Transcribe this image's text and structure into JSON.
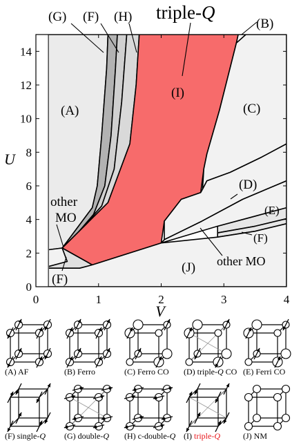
{
  "chart_data": {
    "type": "area",
    "title": "",
    "xlabel": "V",
    "ylabel": "U",
    "xlim": [
      0,
      4
    ],
    "ylim": [
      0,
      15
    ],
    "x_ticks": [
      "0",
      "1",
      "2",
      "3",
      "4"
    ],
    "y_ticks": [
      "0",
      "2",
      "4",
      "6",
      "8",
      "10",
      "12",
      "14"
    ],
    "grid": false,
    "regions": [
      {
        "label": "(A)",
        "color": "#ebebeb",
        "boundary": [
          [
            0.2,
            2.2
          ],
          [
            0.42,
            2.3
          ],
          [
            0.5,
            2.7
          ],
          [
            0.9,
            4.7
          ],
          [
            0.98,
            6
          ],
          [
            1.05,
            9
          ],
          [
            1.13,
            13
          ],
          [
            1.15,
            15
          ],
          [
            0.2,
            15
          ]
        ]
      },
      {
        "label": "(G)",
        "color": "#b2b2b2",
        "boundary": [
          [
            0.42,
            2.3
          ],
          [
            0.6,
            2.9
          ],
          [
            0.92,
            4.3
          ],
          [
            1.1,
            6
          ],
          [
            1.2,
            9
          ],
          [
            1.27,
            13
          ],
          [
            1.3,
            15
          ],
          [
            1.15,
            15
          ],
          [
            1.13,
            13
          ],
          [
            1.05,
            9
          ],
          [
            0.98,
            6
          ],
          [
            0.9,
            4.7
          ],
          [
            0.5,
            2.7
          ]
        ]
      },
      {
        "label": "(F)",
        "color": "#d0d0d0",
        "boundary": [
          [
            0.6,
            2.9
          ],
          [
            1.05,
            4.8
          ],
          [
            1.25,
            7
          ],
          [
            1.37,
            11
          ],
          [
            1.45,
            15
          ],
          [
            1.3,
            15
          ],
          [
            1.27,
            13
          ],
          [
            1.2,
            9
          ],
          [
            1.1,
            6
          ],
          [
            0.92,
            4.3
          ]
        ]
      },
      {
        "label": "(H)",
        "color": "#d9d9d9",
        "boundary": [
          [
            0.42,
            2.3
          ],
          [
            1.15,
            5
          ],
          [
            1.5,
            8.5
          ],
          [
            1.6,
            12
          ],
          [
            1.65,
            15
          ],
          [
            1.45,
            15
          ],
          [
            1.37,
            11
          ],
          [
            1.25,
            7
          ],
          [
            1.05,
            4.8
          ],
          [
            0.6,
            2.9
          ]
        ]
      },
      {
        "label": "(I)",
        "color": "#f76b6b",
        "boundary": [
          [
            0.42,
            2.3
          ],
          [
            0.9,
            1.3
          ],
          [
            2,
            2.6
          ],
          [
            2.05,
            3.9
          ],
          [
            2.32,
            5.2
          ],
          [
            2.63,
            5.6
          ],
          [
            2.68,
            7
          ],
          [
            2.73,
            7.9
          ],
          [
            2.93,
            10.5
          ],
          [
            3.2,
            14.5
          ],
          [
            3.23,
            15
          ],
          [
            1.65,
            15
          ],
          [
            1.6,
            12
          ],
          [
            1.5,
            8.5
          ],
          [
            1.15,
            5
          ]
        ]
      },
      {
        "label": "(C)",
        "color": "#f2f2f2",
        "boundary": [
          [
            2.66,
            5.8
          ],
          [
            2.73,
            6.3
          ],
          [
            3.1,
            6.8
          ],
          [
            3.6,
            7.7
          ],
          [
            4,
            8.5
          ],
          [
            4,
            15
          ],
          [
            3.35,
            15
          ],
          [
            3.2,
            14.5
          ],
          [
            2.93,
            10.5
          ],
          [
            2.73,
            7.9
          ],
          [
            2.68,
            7
          ]
        ]
      },
      {
        "label": "(D)",
        "color": "#f2f2f2",
        "boundary": [
          [
            2.05,
            2.8
          ],
          [
            2.65,
            3.9
          ],
          [
            3.3,
            5.2
          ],
          [
            4,
            6.3
          ],
          [
            4,
            8.5
          ],
          [
            3.6,
            7.7
          ],
          [
            3.1,
            6.8
          ],
          [
            2.73,
            6.3
          ],
          [
            2.66,
            5.8
          ],
          [
            2.63,
            5.6
          ],
          [
            2.32,
            5.2
          ],
          [
            2.05,
            3.9
          ]
        ]
      },
      {
        "label": "(E)",
        "color": "#e6e6e6",
        "boundary": [
          [
            2.9,
            3.6
          ],
          [
            3.5,
            4.2
          ],
          [
            4,
            4.7
          ],
          [
            4,
            4.05
          ],
          [
            3.5,
            3.6
          ],
          [
            2.9,
            3.2
          ]
        ]
      },
      {
        "label": "(F)",
        "color": "#e6e6e6",
        "boundary": [
          [
            2.9,
            3.2
          ],
          [
            3.5,
            3.6
          ],
          [
            4,
            4.05
          ],
          [
            4,
            3.75
          ],
          [
            3.5,
            3.3
          ],
          [
            2.9,
            2.95
          ]
        ]
      },
      {
        "label": "other MO",
        "color": "#f2f2f2",
        "boundary": [
          [
            2,
            2.6
          ],
          [
            2.9,
            3.6
          ],
          [
            3.5,
            4.2
          ],
          [
            4,
            4.7
          ],
          [
            4,
            6.3
          ],
          [
            3.3,
            5.2
          ],
          [
            2.65,
            3.9
          ],
          [
            2.05,
            2.8
          ]
        ]
      },
      {
        "label": "other MO",
        "color": "#f2f2f2",
        "boundary": [
          [
            0.2,
            1.2
          ],
          [
            0.3,
            1.3
          ],
          [
            0.5,
            1.5
          ],
          [
            0.42,
            2.3
          ],
          [
            0.2,
            2.2
          ]
        ]
      },
      {
        "label": "(F)",
        "color": "#e0e0e0",
        "boundary": [
          [
            0.2,
            1.1
          ],
          [
            0.7,
            1.1
          ],
          [
            0.9,
            1.3
          ],
          [
            0.42,
            2.3
          ],
          [
            0.5,
            1.5
          ],
          [
            0.3,
            1.3
          ],
          [
            0.2,
            1.2
          ]
        ]
      },
      {
        "label": "(B)",
        "color": "#ffffff",
        "boundary": [
          [
            3.23,
            15
          ],
          [
            3.2,
            14.5
          ],
          [
            3.35,
            15
          ]
        ]
      },
      {
        "label": "(J)",
        "color": "#f2f2f2",
        "boundary": [
          [
            0.2,
            0
          ],
          [
            4,
            0
          ],
          [
            4,
            3.75
          ],
          [
            3.5,
            3.3
          ],
          [
            2.9,
            2.95
          ],
          [
            2,
            2.6
          ],
          [
            0.9,
            1.3
          ],
          [
            0.7,
            1.1
          ],
          [
            0.2,
            1.1
          ]
        ]
      }
    ]
  },
  "figure": {
    "region_labels": {
      "A": "(A)",
      "B": "(B)",
      "C": "(C)",
      "D": "(D)",
      "E": "(E)",
      "F_top": "(F)",
      "F_right": "(F)",
      "F_bottom": "(F)",
      "G": "(G)",
      "H": "(H)",
      "I": "(I)",
      "J": "(J)"
    },
    "triple_q_prefix": "triple-",
    "triple_q_italic": "Q",
    "other_mo_left_1": "other",
    "other_mo_left_2": "MO",
    "other_mo_right": "other MO",
    "phase_legend": [
      {
        "id": "A",
        "tag": "(A)",
        "text": "AF",
        "italic": "",
        "suffix": "",
        "red": false
      },
      {
        "id": "B",
        "tag": "(B)",
        "text": "Ferro",
        "italic": "",
        "suffix": "",
        "red": false
      },
      {
        "id": "C",
        "tag": "(C)",
        "text": "Ferro CO",
        "italic": "",
        "suffix": "",
        "red": false
      },
      {
        "id": "D",
        "tag": "(D)",
        "text": "triple-",
        "italic": "Q",
        "suffix": " CO",
        "red": false
      },
      {
        "id": "E",
        "tag": "(E)",
        "text": "Ferri CO",
        "italic": "",
        "suffix": "",
        "red": false
      },
      {
        "id": "F",
        "tag": "(F)",
        "text": "single-",
        "italic": "Q",
        "suffix": "",
        "red": false
      },
      {
        "id": "G",
        "tag": "(G)",
        "text": "double-",
        "italic": "Q",
        "suffix": "",
        "red": false
      },
      {
        "id": "H",
        "tag": "(H)",
        "text": "c-double-",
        "italic": "Q",
        "suffix": "",
        "red": false
      },
      {
        "id": "I",
        "tag": "(I)",
        "text": "triple-",
        "italic": "Q",
        "suffix": "",
        "red": true
      },
      {
        "id": "J",
        "tag": "(J)",
        "text": "NM",
        "italic": "",
        "suffix": "",
        "red": false
      }
    ],
    "highlight_color": "#e8161b"
  }
}
